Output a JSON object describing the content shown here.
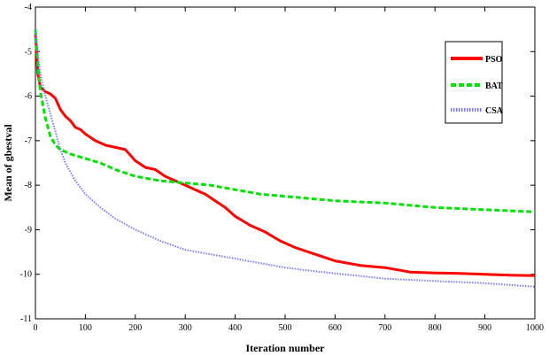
{
  "chart_data": {
    "type": "line",
    "title": "",
    "xlabel": "Iteration number",
    "ylabel": "Mean of gbestval",
    "xlim": [
      0,
      1000
    ],
    "ylim": [
      -11,
      -4
    ],
    "xticks": [
      0,
      100,
      200,
      300,
      400,
      500,
      600,
      700,
      800,
      900,
      1000
    ],
    "yticks": [
      -4,
      -5,
      -6,
      -7,
      -8,
      -9,
      -10,
      -11
    ],
    "grid": false,
    "legend": "top-right",
    "series": [
      {
        "name": "PSO",
        "color": "#ff0000",
        "style": "solid",
        "x": [
          0,
          5,
          10,
          20,
          30,
          40,
          50,
          60,
          70,
          80,
          90,
          100,
          120,
          140,
          160,
          180,
          200,
          220,
          240,
          260,
          280,
          300,
          320,
          340,
          360,
          380,
          400,
          430,
          460,
          490,
          520,
          560,
          600,
          650,
          700,
          750,
          800,
          850,
          900,
          950,
          1000
        ],
        "y": [
          -4.6,
          -5.5,
          -5.8,
          -5.9,
          -5.95,
          -6.05,
          -6.3,
          -6.45,
          -6.55,
          -6.7,
          -6.75,
          -6.85,
          -7.0,
          -7.1,
          -7.15,
          -7.2,
          -7.45,
          -7.6,
          -7.65,
          -7.8,
          -7.9,
          -8.0,
          -8.1,
          -8.2,
          -8.35,
          -8.5,
          -8.7,
          -8.9,
          -9.05,
          -9.25,
          -9.4,
          -9.55,
          -9.7,
          -9.8,
          -9.85,
          -9.95,
          -9.97,
          -9.98,
          -10.0,
          -10.02,
          -10.03
        ]
      },
      {
        "name": "BAT",
        "color": "#00e000",
        "style": "dashed",
        "x": [
          0,
          5,
          10,
          20,
          30,
          40,
          50,
          70,
          100,
          130,
          160,
          200,
          250,
          300,
          350,
          400,
          450,
          500,
          600,
          700,
          800,
          900,
          1000
        ],
        "y": [
          -4.5,
          -5.3,
          -5.9,
          -6.5,
          -6.9,
          -7.1,
          -7.2,
          -7.3,
          -7.4,
          -7.5,
          -7.65,
          -7.8,
          -7.9,
          -7.95,
          -8.0,
          -8.1,
          -8.2,
          -8.25,
          -8.35,
          -8.4,
          -8.5,
          -8.55,
          -8.6
        ]
      },
      {
        "name": "CSA",
        "color": "#7b7bff",
        "style": "dotted",
        "x": [
          0,
          5,
          10,
          20,
          30,
          40,
          50,
          60,
          80,
          100,
          130,
          160,
          200,
          250,
          300,
          350,
          400,
          450,
          500,
          550,
          600,
          700,
          800,
          900,
          1000
        ],
        "y": [
          -4.5,
          -5.1,
          -5.5,
          -6.0,
          -6.4,
          -6.8,
          -7.2,
          -7.5,
          -7.9,
          -8.2,
          -8.5,
          -8.75,
          -9.0,
          -9.25,
          -9.45,
          -9.55,
          -9.65,
          -9.75,
          -9.85,
          -9.92,
          -9.98,
          -10.1,
          -10.15,
          -10.2,
          -10.28
        ]
      }
    ]
  }
}
